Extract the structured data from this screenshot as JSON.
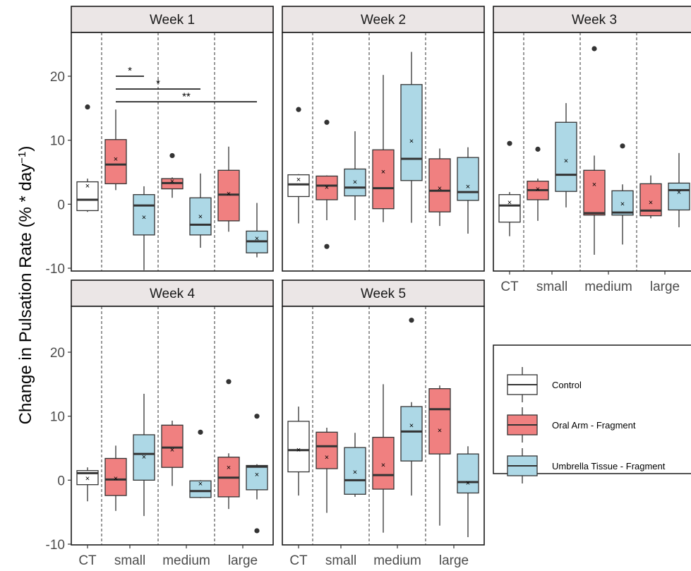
{
  "chart_data": {
    "type": "boxplot",
    "ylabel": "Change in Pulsation Rate (% * day",
    "ylabel_sup": "−1",
    "ylabel_close": ")",
    "ylim": [
      -11.5,
      26.5
    ],
    "yticks": [
      -10,
      0,
      10,
      20
    ],
    "categories": [
      "CT",
      "small",
      "medium",
      "large"
    ],
    "legend": {
      "position": "right",
      "entries": [
        {
          "label": "Control",
          "color": "#ffffff"
        },
        {
          "label": "Oral Arm - Fragment",
          "color": "#f08080"
        },
        {
          "label": "Umbrella Tissue - Fragment",
          "color": "#add8e6"
        }
      ]
    },
    "panels": [
      {
        "title": "Week 1",
        "boxes": [
          {
            "category": "CT",
            "group": "Control",
            "min": -1.2,
            "q1": -1.0,
            "median": 0.7,
            "q3": 3.5,
            "max": 4.0,
            "mean": 2.9,
            "outliers": [
              15.2
            ]
          },
          {
            "category": "small",
            "group": "Oral Arm - Fragment",
            "min": 2.2,
            "q1": 3.2,
            "median": 6.2,
            "q3": 10.1,
            "max": 14.8,
            "mean": 7.1,
            "outliers": []
          },
          {
            "category": "small",
            "group": "Umbrella Tissue - Fragment",
            "min": -10.3,
            "q1": -4.8,
            "median": -0.2,
            "q3": 1.5,
            "max": 2.8,
            "mean": -2.0,
            "outliers": []
          },
          {
            "category": "medium",
            "group": "Oral Arm - Fragment",
            "min": 1.0,
            "q1": 2.4,
            "median": 3.3,
            "q3": 4.0,
            "max": 4.2,
            "mean": 3.6,
            "outliers": [
              7.6
            ]
          },
          {
            "category": "medium",
            "group": "Umbrella Tissue - Fragment",
            "min": -6.8,
            "q1": -4.8,
            "median": -3.2,
            "q3": 1.0,
            "max": 4.8,
            "mean": -1.9,
            "outliers": []
          },
          {
            "category": "large",
            "group": "Oral Arm - Fragment",
            "min": -4.3,
            "q1": -2.6,
            "median": 1.5,
            "q3": 5.3,
            "max": 9.0,
            "mean": 1.7,
            "outliers": []
          },
          {
            "category": "large",
            "group": "Umbrella Tissue - Fragment",
            "min": -8.3,
            "q1": -7.6,
            "median": -5.8,
            "q3": -4.2,
            "max": 0.2,
            "mean": -5.3,
            "outliers": []
          }
        ],
        "annotations": [
          {
            "label": "*",
            "y": 20.0,
            "from": [
              "small",
              "Oral Arm - Fragment"
            ],
            "to": [
              "small",
              "Umbrella Tissue - Fragment"
            ]
          },
          {
            "label": "*",
            "y": 18.0,
            "from": [
              "small",
              "Oral Arm - Fragment"
            ],
            "to": [
              "medium",
              "Umbrella Tissue - Fragment"
            ]
          },
          {
            "label": "**",
            "y": 16.0,
            "from": [
              "small",
              "Oral Arm - Fragment"
            ],
            "to": [
              "large",
              "Umbrella Tissue - Fragment"
            ]
          }
        ]
      },
      {
        "title": "Week 2",
        "boxes": [
          {
            "category": "CT",
            "group": "Control",
            "min": -3.0,
            "q1": 1.2,
            "median": 3.1,
            "q3": 4.6,
            "max": 4.7,
            "mean": 3.9,
            "outliers": [
              14.8
            ]
          },
          {
            "category": "small",
            "group": "Oral Arm - Fragment",
            "min": -2.5,
            "q1": 0.7,
            "median": 2.9,
            "q3": 4.4,
            "max": 4.5,
            "mean": 2.7,
            "outliers": [
              12.8,
              -6.6
            ]
          },
          {
            "category": "small",
            "group": "Umbrella Tissue - Fragment",
            "min": -2.5,
            "q1": 1.3,
            "median": 2.6,
            "q3": 5.5,
            "max": 11.4,
            "mean": 3.5,
            "outliers": []
          },
          {
            "category": "medium",
            "group": "Oral Arm - Fragment",
            "min": -2.8,
            "q1": -0.7,
            "median": 2.5,
            "q3": 8.5,
            "max": 20.2,
            "mean": 5.1,
            "outliers": []
          },
          {
            "category": "medium",
            "group": "Umbrella Tissue - Fragment",
            "min": -2.9,
            "q1": 3.7,
            "median": 7.1,
            "q3": 18.7,
            "max": 23.8,
            "mean": 9.9,
            "outliers": []
          },
          {
            "category": "large",
            "group": "Oral Arm - Fragment",
            "min": -3.4,
            "q1": -1.2,
            "median": 2.1,
            "q3": 7.1,
            "max": 8.7,
            "mean": 2.5,
            "outliers": []
          },
          {
            "category": "large",
            "group": "Umbrella Tissue - Fragment",
            "min": -4.6,
            "q1": 0.6,
            "median": 1.9,
            "q3": 7.3,
            "max": 8.9,
            "mean": 2.8,
            "outliers": []
          }
        ],
        "annotations": []
      },
      {
        "title": "Week 3",
        "boxes": [
          {
            "category": "CT",
            "group": "Control",
            "min": -5.0,
            "q1": -2.8,
            "median": -0.2,
            "q3": 1.5,
            "max": 1.9,
            "mean": 0.3,
            "outliers": [
              9.5
            ]
          },
          {
            "category": "small",
            "group": "Oral Arm - Fragment",
            "min": -2.6,
            "q1": 0.7,
            "median": 2.2,
            "q3": 3.6,
            "max": 4.0,
            "mean": 2.4,
            "outliers": [
              8.6
            ]
          },
          {
            "category": "small",
            "group": "Umbrella Tissue - Fragment",
            "min": -0.5,
            "q1": 2.0,
            "median": 4.6,
            "q3": 12.8,
            "max": 15.8,
            "mean": 6.8,
            "outliers": []
          },
          {
            "category": "medium",
            "group": "Oral Arm - Fragment",
            "min": -7.9,
            "q1": -1.7,
            "median": -1.4,
            "q3": 5.3,
            "max": 7.6,
            "mean": 3.1,
            "outliers": [
              24.3
            ]
          },
          {
            "category": "medium",
            "group": "Umbrella Tissue - Fragment",
            "min": -6.3,
            "q1": -1.7,
            "median": -1.3,
            "q3": 2.1,
            "max": 3.1,
            "mean": 0.1,
            "outliers": [
              9.1
            ]
          },
          {
            "category": "large",
            "group": "Oral Arm - Fragment",
            "min": -2.2,
            "q1": -1.8,
            "median": -1.0,
            "q3": 3.2,
            "max": 4.5,
            "mean": 0.3,
            "outliers": []
          },
          {
            "category": "large",
            "group": "Umbrella Tissue - Fragment",
            "min": -3.6,
            "q1": -0.9,
            "median": 2.2,
            "q3": 3.3,
            "max": 8.0,
            "mean": 1.9,
            "outliers": []
          }
        ],
        "annotations": []
      },
      {
        "title": "Week 4",
        "boxes": [
          {
            "category": "CT",
            "group": "Control",
            "min": -3.3,
            "q1": -0.7,
            "median": 1.1,
            "q3": 1.5,
            "max": 2.0,
            "mean": 0.3,
            "outliers": []
          },
          {
            "category": "small",
            "group": "Oral Arm - Fragment",
            "min": -4.8,
            "q1": -2.4,
            "median": 0.1,
            "q3": 3.4,
            "max": 5.4,
            "mean": 0.3,
            "outliers": []
          },
          {
            "category": "small",
            "group": "Umbrella Tissue - Fragment",
            "min": -5.6,
            "q1": 0.0,
            "median": 4.1,
            "q3": 7.1,
            "max": 13.5,
            "mean": 3.7,
            "outliers": []
          },
          {
            "category": "medium",
            "group": "Oral Arm - Fragment",
            "min": -0.9,
            "q1": 2.0,
            "median": 5.1,
            "q3": 8.6,
            "max": 9.3,
            "mean": 4.8,
            "outliers": []
          },
          {
            "category": "medium",
            "group": "Umbrella Tissue - Fragment",
            "min": -2.8,
            "q1": -2.7,
            "median": -1.7,
            "q3": -0.1,
            "max": 0.0,
            "mean": -0.5,
            "outliers": [
              7.5
            ]
          },
          {
            "category": "large",
            "group": "Oral Arm - Fragment",
            "min": -4.5,
            "q1": -2.6,
            "median": 0.4,
            "q3": 3.6,
            "max": 4.2,
            "mean": 2.0,
            "outliers": [
              15.4
            ]
          },
          {
            "category": "large",
            "group": "Umbrella Tissue - Fragment",
            "min": -3.0,
            "q1": -1.5,
            "median": 2.1,
            "q3": 2.3,
            "max": 2.5,
            "mean": 0.9,
            "outliers": [
              10.0,
              -7.9
            ]
          }
        ],
        "annotations": []
      },
      {
        "title": "Week 5",
        "boxes": [
          {
            "category": "CT",
            "group": "Control",
            "min": -2.4,
            "q1": 1.3,
            "median": 4.7,
            "q3": 9.2,
            "max": 11.5,
            "mean": 4.8,
            "outliers": []
          },
          {
            "category": "small",
            "group": "Oral Arm - Fragment",
            "min": -5.1,
            "q1": 1.8,
            "median": 5.3,
            "q3": 7.5,
            "max": 8.2,
            "mean": 3.6,
            "outliers": []
          },
          {
            "category": "small",
            "group": "Umbrella Tissue - Fragment",
            "min": -2.6,
            "q1": -2.2,
            "median": 0.0,
            "q3": 5.1,
            "max": 7.4,
            "mean": 1.3,
            "outliers": []
          },
          {
            "category": "medium",
            "group": "Oral Arm - Fragment",
            "min": -8.2,
            "q1": -1.4,
            "median": 0.8,
            "q3": 6.7,
            "max": 15.0,
            "mean": 2.4,
            "outliers": []
          },
          {
            "category": "medium",
            "group": "Umbrella Tissue - Fragment",
            "min": -2.4,
            "q1": 3.0,
            "median": 7.6,
            "q3": 11.5,
            "max": 12.2,
            "mean": 8.6,
            "outliers": [
              25.0
            ]
          },
          {
            "category": "large",
            "group": "Oral Arm - Fragment",
            "min": -7.1,
            "q1": 4.1,
            "median": 11.1,
            "q3": 14.3,
            "max": 14.8,
            "mean": 7.8,
            "outliers": []
          },
          {
            "category": "large",
            "group": "Umbrella Tissue - Fragment",
            "min": -8.9,
            "q1": -2.0,
            "median": -0.3,
            "q3": 4.1,
            "max": 5.3,
            "mean": -0.4,
            "outliers": []
          }
        ],
        "annotations": []
      }
    ]
  }
}
